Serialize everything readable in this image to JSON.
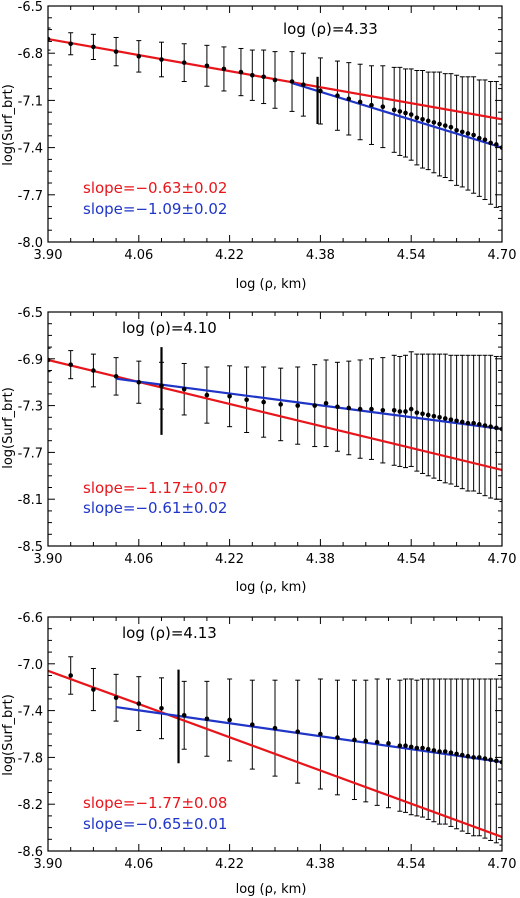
{
  "chart_data": [
    {
      "type": "scatter",
      "xlabel": "log (ρ, km)",
      "ylabel": "log(Surf_brt)",
      "xlim": [
        3.9,
        4.7
      ],
      "ylim": [
        -8.0,
        -6.5
      ],
      "xticks": [
        "3.90",
        "4.06",
        "4.22",
        "4.38",
        "4.54",
        "4.70"
      ],
      "yticks": [
        "-6.5",
        "-6.8",
        "-7.1",
        "-7.4",
        "-7.7",
        "-8.0"
      ],
      "ytick_values": [
        -6.5,
        -6.8,
        -7.1,
        -7.4,
        -7.7,
        -8.0
      ],
      "annotation": "log (ρ)=4.33",
      "break_x": 4.375,
      "break_bar": [
        -6.95,
        -7.25
      ],
      "fit_inner": {
        "label": "slope=−0.63±0.02",
        "color": "#e8151b",
        "x": [
          3.9,
          4.7
        ],
        "y": [
          -6.71,
          -7.22
        ]
      },
      "fit_outer": {
        "label": "slope=−1.09±0.02",
        "color": "#1f35c8",
        "x": [
          4.33,
          4.7
        ],
        "y": [
          -6.99,
          -7.4
        ]
      },
      "points": {
        "x": [
          3.9,
          3.94,
          3.98,
          4.02,
          4.06,
          4.1,
          4.14,
          4.18,
          4.21,
          4.24,
          4.26,
          4.28,
          4.3,
          4.33,
          4.35,
          4.38,
          4.41,
          4.43,
          4.45,
          4.47,
          4.49,
          4.51,
          4.52,
          4.53,
          4.54,
          4.55,
          4.56,
          4.57,
          4.58,
          4.59,
          4.6,
          4.61,
          4.62,
          4.63,
          4.64,
          4.65,
          4.66,
          4.67,
          4.68,
          4.69,
          4.7
        ],
        "y": [
          -6.71,
          -6.74,
          -6.76,
          -6.79,
          -6.82,
          -6.84,
          -6.86,
          -6.88,
          -6.9,
          -6.92,
          -6.94,
          -6.95,
          -6.97,
          -6.98,
          -7.0,
          -7.04,
          -7.07,
          -7.09,
          -7.11,
          -7.13,
          -7.14,
          -7.16,
          -7.17,
          -7.18,
          -7.19,
          -7.21,
          -7.22,
          -7.23,
          -7.24,
          -7.25,
          -7.26,
          -7.27,
          -7.29,
          -7.3,
          -7.31,
          -7.32,
          -7.34,
          -7.35,
          -7.37,
          -7.38,
          -7.4
        ],
        "err": [
          0.07,
          0.07,
          0.08,
          0.09,
          0.1,
          0.11,
          0.12,
          0.13,
          0.14,
          0.15,
          0.16,
          0.17,
          0.18,
          0.19,
          0.2,
          0.21,
          0.22,
          0.23,
          0.24,
          0.25,
          0.26,
          0.27,
          0.28,
          0.28,
          0.29,
          0.3,
          0.31,
          0.31,
          0.32,
          0.33,
          0.33,
          0.34,
          0.35,
          0.35,
          0.36,
          0.37,
          0.37,
          0.38,
          0.39,
          0.4,
          0.4
        ]
      }
    },
    {
      "type": "scatter",
      "xlabel": "log (ρ, km)",
      "ylabel": "log(Surf_brt)",
      "xlim": [
        3.9,
        4.7
      ],
      "ylim": [
        -8.5,
        -6.5
      ],
      "xticks": [
        "3.90",
        "4.06",
        "4.22",
        "4.38",
        "4.54",
        "4.70"
      ],
      "yticks": [
        "-6.5",
        "-6.9",
        "-7.3",
        "-7.7",
        "-8.1",
        "-8.5"
      ],
      "ytick_values": [
        -6.5,
        -6.9,
        -7.3,
        -7.7,
        -8.1,
        -8.5
      ],
      "annotation": "log (ρ)=4.10",
      "break_x": 4.1,
      "break_bar": [
        -6.8,
        -7.55
      ],
      "fit_inner": {
        "label": "slope=−1.17±0.07",
        "color": "#e8151b",
        "x": [
          3.9,
          4.7
        ],
        "y": [
          -6.91,
          -7.85
        ]
      },
      "fit_outer": {
        "label": "slope=−0.61±0.02",
        "color": "#1f35c8",
        "x": [
          4.02,
          4.7
        ],
        "y": [
          -7.07,
          -7.5
        ]
      },
      "points": {
        "x": [
          3.9,
          3.94,
          3.98,
          4.02,
          4.06,
          4.1,
          4.14,
          4.18,
          4.22,
          4.25,
          4.28,
          4.31,
          4.34,
          4.37,
          4.39,
          4.41,
          4.43,
          4.45,
          4.47,
          4.49,
          4.51,
          4.52,
          4.53,
          4.54,
          4.55,
          4.56,
          4.57,
          4.58,
          4.59,
          4.6,
          4.61,
          4.62,
          4.63,
          4.64,
          4.65,
          4.66,
          4.67,
          4.68,
          4.69,
          4.7
        ],
        "y": [
          -6.91,
          -6.95,
          -7.0,
          -7.05,
          -7.1,
          -7.13,
          -7.16,
          -7.21,
          -7.22,
          -7.25,
          -7.27,
          -7.29,
          -7.3,
          -7.3,
          -7.28,
          -7.31,
          -7.32,
          -7.33,
          -7.33,
          -7.34,
          -7.34,
          -7.35,
          -7.35,
          -7.33,
          -7.36,
          -7.37,
          -7.38,
          -7.39,
          -7.4,
          -7.41,
          -7.42,
          -7.43,
          -7.44,
          -7.45,
          -7.45,
          -7.46,
          -7.47,
          -7.48,
          -7.49,
          -7.5
        ],
        "err": [
          0.1,
          0.12,
          0.14,
          0.16,
          0.18,
          0.2,
          0.22,
          0.24,
          0.26,
          0.28,
          0.3,
          0.31,
          0.33,
          0.35,
          0.37,
          0.38,
          0.4,
          0.42,
          0.43,
          0.45,
          0.47,
          0.47,
          0.48,
          0.49,
          0.5,
          0.51,
          0.52,
          0.53,
          0.54,
          0.55,
          0.55,
          0.56,
          0.57,
          0.58,
          0.58,
          0.59,
          0.6,
          0.61,
          0.61,
          0.62
        ]
      }
    },
    {
      "type": "scatter",
      "xlabel": "log (ρ, km)",
      "ylabel": "log(Surf_brt)",
      "xlim": [
        3.9,
        4.7
      ],
      "ylim": [
        -8.6,
        -6.6
      ],
      "xticks": [
        "3.90",
        "4.06",
        "4.22",
        "4.38",
        "4.54",
        "4.70"
      ],
      "yticks": [
        "-6.6",
        "-7.0",
        "-7.4",
        "-7.8",
        "-8.2",
        "-8.6"
      ],
      "ytick_values": [
        -6.6,
        -7.0,
        -7.4,
        -7.8,
        -8.2,
        -8.6
      ],
      "annotation": "log (ρ)=4.13",
      "break_x": 4.13,
      "break_bar": [
        -7.05,
        -7.85
      ],
      "fit_inner": {
        "label": "slope=−1.77±0.08",
        "color": "#e8151b",
        "x": [
          3.9,
          4.7
        ],
        "y": [
          -7.06,
          -8.48
        ]
      },
      "fit_outer": {
        "label": "slope=−0.65±0.01",
        "color": "#1f35c8",
        "x": [
          4.02,
          4.7
        ],
        "y": [
          -7.37,
          -7.84
        ]
      },
      "points": {
        "x": [
          3.94,
          3.98,
          4.02,
          4.06,
          4.1,
          4.14,
          4.18,
          4.22,
          4.26,
          4.3,
          4.34,
          4.38,
          4.41,
          4.44,
          4.46,
          4.48,
          4.5,
          4.52,
          4.53,
          4.54,
          4.55,
          4.56,
          4.57,
          4.58,
          4.59,
          4.6,
          4.61,
          4.62,
          4.63,
          4.64,
          4.65,
          4.66,
          4.67,
          4.68,
          4.69,
          4.7
        ],
        "y": [
          -7.1,
          -7.22,
          -7.29,
          -7.34,
          -7.38,
          -7.44,
          -7.47,
          -7.48,
          -7.52,
          -7.55,
          -7.58,
          -7.6,
          -7.63,
          -7.65,
          -7.66,
          -7.67,
          -7.68,
          -7.7,
          -7.7,
          -7.71,
          -7.72,
          -7.72,
          -7.73,
          -7.74,
          -7.75,
          -7.75,
          -7.76,
          -7.77,
          -7.78,
          -7.79,
          -7.8,
          -7.8,
          -7.81,
          -7.82,
          -7.83,
          -7.84
        ],
        "err": [
          0.16,
          0.18,
          0.2,
          0.23,
          0.26,
          0.29,
          0.32,
          0.35,
          0.38,
          0.41,
          0.44,
          0.47,
          0.49,
          0.51,
          0.52,
          0.54,
          0.55,
          0.56,
          0.57,
          0.58,
          0.58,
          0.59,
          0.6,
          0.61,
          0.62,
          0.62,
          0.63,
          0.64,
          0.65,
          0.66,
          0.67,
          0.67,
          0.68,
          0.69,
          0.7,
          0.71
        ]
      }
    }
  ]
}
